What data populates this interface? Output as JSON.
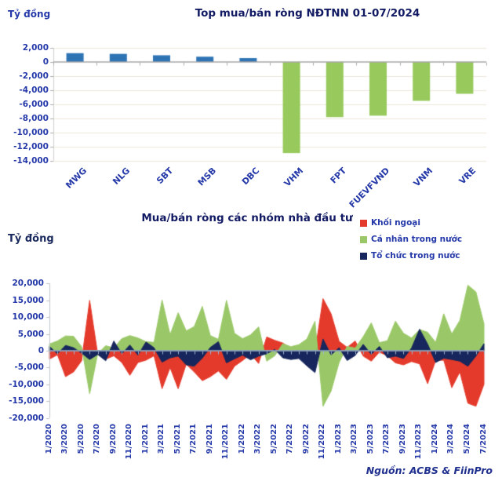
{
  "top_chart": {
    "unit_label": "Tỷ đồng",
    "title": "Top mua/bán ròng NĐTNN 01-07/2024"
  },
  "bottom_chart": {
    "unit_label": "Tỷ đồng",
    "title": "Mua/bán ròng các nhóm nhà đầu tư"
  },
  "source_note": "Nguồn:  ACBS & FiinPro",
  "colors": {
    "title_navy": "#121A63",
    "axis_text_blue": "#2539A9",
    "bar_positive_blue": "#2E74B5",
    "bar_negative_green": "#97C95C",
    "area_red": "#E43A2B",
    "area_green": "#9AC868",
    "area_navy": "#17265C",
    "gridline_beige": "#EDE7DA",
    "zero_line_gray": "#A6A6A6",
    "zero_line_blue_gray": "#9EB5CD",
    "axis_line_gray": "#BFC5CB"
  },
  "chart_data": [
    {
      "id": "top-net-foreign-by-ticker",
      "type": "bar",
      "title": "Top mua/bán ròng NĐTNN 01-07/2024",
      "ylabel": "Tỷ đồng",
      "categories": [
        "MWG",
        "NLG",
        "SBT",
        "MSB",
        "DBC",
        "VHM",
        "FPT",
        "FUEVFVND",
        "VNM",
        "VRE"
      ],
      "values": [
        1250,
        1150,
        950,
        750,
        550,
        -12900,
        -7800,
        -7600,
        -5500,
        -4500
      ],
      "ylim": [
        -14000,
        2000
      ],
      "ytick_step": 2000,
      "grid": true
    },
    {
      "id": "net-flow-by-investor-group",
      "type": "area",
      "title": "Mua/bán ròng các nhóm nhà đầu tư",
      "ylabel": "Tỷ đồng",
      "x_start": "1/2020",
      "x_end": "7/2024",
      "x_frequency": "monthly",
      "x_tick_labels": [
        "1/2020",
        "3/2020",
        "5/2020",
        "7/2020",
        "9/2020",
        "11/2020",
        "1/2021",
        "3/2021",
        "5/2021",
        "7/2021",
        "9/2021",
        "11/2021",
        "1/2022",
        "3/2022",
        "5/2022",
        "7/2022",
        "9/2022",
        "11/2022",
        "1/2023",
        "3/2023",
        "5/2023",
        "7/2023",
        "9/2023",
        "11/2023",
        "1/2024",
        "3/2024",
        "5/2024",
        "7/2024"
      ],
      "ylim": [
        -20000,
        20000
      ],
      "ytick_step": 5000,
      "legend_position": "top-right",
      "grid": false,
      "series": [
        {
          "name": "Khối ngoại",
          "color": "#E43A2B",
          "values": [
            -2500,
            -1200,
            -7700,
            -6300,
            -3000,
            15000,
            -1000,
            -2500,
            -1500,
            -3500,
            -7300,
            -3500,
            -2800,
            -1500,
            -11300,
            -5000,
            -11300,
            -4000,
            -6300,
            -8900,
            -7700,
            -6000,
            -8500,
            -4600,
            -2900,
            -1000,
            -3800,
            4100,
            3100,
            2300,
            800,
            -500,
            -2100,
            -500,
            15500,
            11000,
            2800,
            1000,
            2900,
            -1600,
            -3100,
            -400,
            -1500,
            -3600,
            -4200,
            -3200,
            -3900,
            -9800,
            -2900,
            -2800,
            -11000,
            -6300,
            -15600,
            -16500,
            -10000
          ]
        },
        {
          "name": "Cá nhân trong nước",
          "color": "#9AC868",
          "values": [
            2000,
            2900,
            4400,
            4300,
            1200,
            -12800,
            -900,
            1500,
            800,
            3600,
            4500,
            3800,
            2700,
            2500,
            15100,
            4800,
            11300,
            5900,
            7200,
            13200,
            4500,
            3400,
            15000,
            5200,
            3600,
            4700,
            7100,
            -3100,
            -1500,
            2100,
            1200,
            1800,
            3500,
            8800,
            -16500,
            -12000,
            -3500,
            1300,
            800,
            4200,
            8300,
            2400,
            3000,
            8800,
            5200,
            3800,
            6300,
            5500,
            2500,
            11000,
            5000,
            9000,
            19500,
            17500,
            8000
          ]
        },
        {
          "name": "Tổ chức trong nước",
          "color": "#17265C",
          "values": [
            1300,
            -900,
            1600,
            900,
            -700,
            -2600,
            -1100,
            -3000,
            2900,
            -900,
            1700,
            -1300,
            2600,
            900,
            -3400,
            -2100,
            -1600,
            -4200,
            -4600,
            -2200,
            1000,
            2700,
            -3600,
            -2400,
            -1300,
            -2700,
            -1600,
            -900,
            400,
            -2100,
            -2600,
            -2300,
            -4500,
            -6500,
            3500,
            -1200,
            900,
            -2900,
            -1400,
            1900,
            -1100,
            1300,
            -2100,
            -1600,
            -2300,
            800,
            6400,
            2000,
            -3500,
            -2200,
            -2600,
            -3100,
            -4600,
            -1600,
            2100
          ]
        }
      ]
    }
  ]
}
